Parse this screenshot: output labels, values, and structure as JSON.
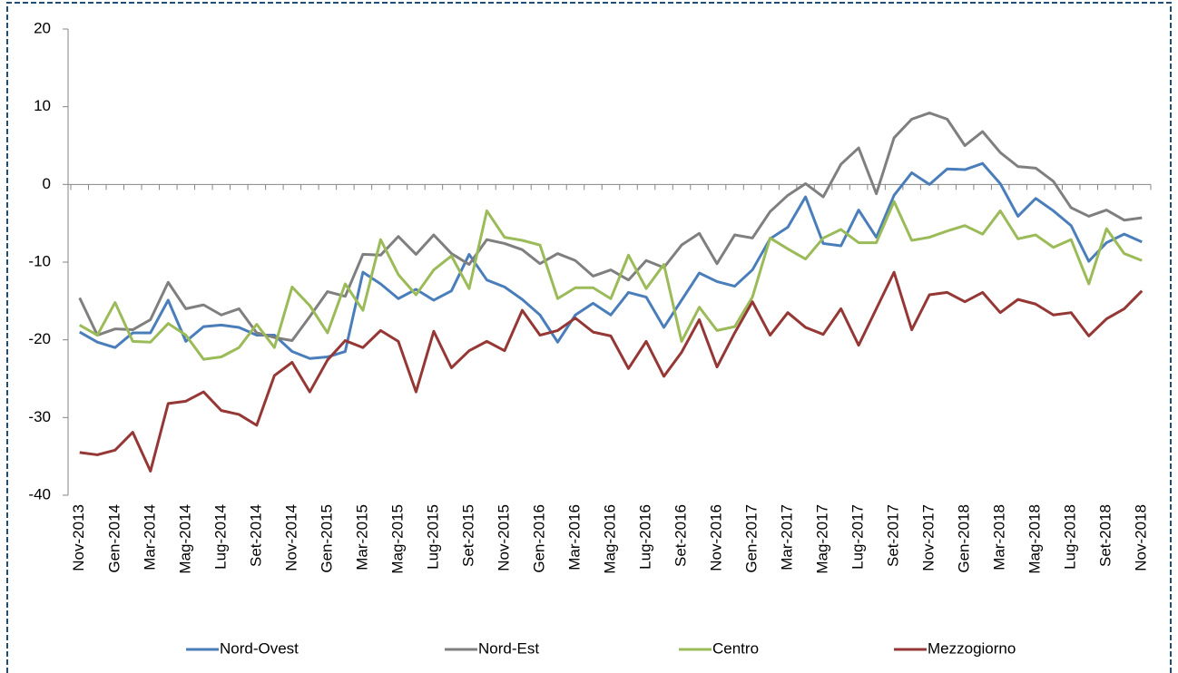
{
  "chart_data": {
    "type": "line",
    "categories": [
      "Nov-2013",
      null,
      "Gen-2014",
      null,
      "Mar-2014",
      null,
      "Mag-2014",
      null,
      "Lug-2014",
      null,
      "Set-2014",
      null,
      "Nov-2014",
      null,
      "Gen-2015",
      null,
      "Mar-2015",
      null,
      "Mag-2015",
      null,
      "Lug-2015",
      null,
      "Set-2015",
      null,
      "Nov-2015",
      null,
      "Gen-2016",
      null,
      "Mar-2016",
      null,
      "Mag-2016",
      null,
      "Lug-2016",
      null,
      "Set-2016",
      null,
      "Nov-2016",
      null,
      "Gen-2017",
      null,
      "Mar-2017",
      null,
      "Mag-2017",
      null,
      "Lug-2017",
      null,
      "Set-2017",
      null,
      "Nov-2017",
      null,
      "Gen-2018",
      null,
      "Mar-2018",
      null,
      "Mag-2018",
      null,
      "Lug-2018",
      null,
      "Set-2018",
      null,
      "Nov-2018"
    ],
    "series": [
      {
        "name": "Nord-Ovest",
        "color": "#4a7ebb",
        "values": [
          -19,
          -20.3,
          -21,
          -19.1,
          -19.1,
          -14.9,
          -20.2,
          -18.3,
          -18.1,
          -18.4,
          -19.4,
          -19.4,
          -21.5,
          -22.4,
          -22.2,
          -21.5,
          -11.3,
          -12.8,
          -14.7,
          -13.5,
          -14.9,
          -13.7,
          -9,
          -12.3,
          -13.2,
          -14.8,
          -16.8,
          -20.3,
          -16.8,
          -15.3,
          -16.8,
          -13.9,
          -14.5,
          -18.4,
          -14.9,
          -11.4,
          -12.5,
          -13.1,
          -11,
          -7,
          -5.5,
          -1.6,
          -7.6,
          -7.9,
          -3.3,
          -6.8,
          -1.4,
          1.5,
          0,
          2,
          1.9,
          2.7,
          0.1,
          -4.1,
          -1.8,
          -3.4,
          -5.3,
          -9.9,
          -7.5,
          -6.4,
          -7.4
        ]
      },
      {
        "name": "Nord-Est",
        "color": "#7f7f7f",
        "values": [
          -14.6,
          -19.4,
          -18.6,
          -18.7,
          -17.4,
          -12.6,
          -16,
          -15.5,
          -16.8,
          -16,
          -19.1,
          -19.7,
          -20.1,
          -17,
          -13.8,
          -14.4,
          -9,
          -9.1,
          -6.7,
          -9,
          -6.5,
          -8.9,
          -10.3,
          -7.1,
          -7.6,
          -8.4,
          -10.2,
          -8.9,
          -9.8,
          -11.8,
          -11,
          -12.3,
          -9.8,
          -10.7,
          -7.8,
          -6.3,
          -10.2,
          -6.5,
          -6.9,
          -3.5,
          -1.4,
          0.1,
          -1.6,
          2.6,
          4.7,
          -1.2,
          6,
          8.4,
          9.2,
          8.4,
          5,
          6.8,
          4.1,
          2.3,
          2.1,
          0.4,
          -3,
          -4.1,
          -3.3,
          -4.6,
          -4.3
        ]
      },
      {
        "name": "Centro",
        "color": "#9bbb59",
        "values": [
          -18.1,
          -19.4,
          -15.2,
          -20.2,
          -20.3,
          -17.9,
          -19.4,
          -22.5,
          -22.2,
          -21,
          -18,
          -21,
          -13.2,
          -15.6,
          -19.1,
          -12.8,
          -16.2,
          -7.1,
          -11.6,
          -14.2,
          -11,
          -9.2,
          -13.4,
          -3.4,
          -6.8,
          -7.2,
          -7.8,
          -14.7,
          -13.3,
          -13.3,
          -14.7,
          -9.1,
          -13.4,
          -10.3,
          -20.2,
          -15.8,
          -18.8,
          -18.3,
          -14.5,
          -6.9,
          -8.3,
          -9.6,
          -6.9,
          -5.8,
          -7.5,
          -7.5,
          -2.2,
          -7.2,
          -6.8,
          -6,
          -5.3,
          -6.4,
          -3.4,
          -7,
          -6.5,
          -8.1,
          -7.1,
          -12.8,
          -5.7,
          -8.9,
          -9.8
        ]
      },
      {
        "name": "Mezzogiorno",
        "color": "#953735",
        "values": [
          -34.5,
          -34.8,
          -34.2,
          -31.9,
          -36.9,
          -28.2,
          -27.9,
          -26.7,
          -29.1,
          -29.6,
          -31,
          -24.6,
          -22.9,
          -26.7,
          -22.6,
          -20.1,
          -21,
          -18.8,
          -20.2,
          -26.7,
          -18.9,
          -23.6,
          -21.4,
          -20.2,
          -21.4,
          -16.2,
          -19.4,
          -18.8,
          -17.2,
          -19,
          -19.5,
          -23.7,
          -20.2,
          -24.7,
          -21.6,
          -17.4,
          -23.5,
          -19.1,
          -15.1,
          -19.4,
          -16.5,
          -18.4,
          -19.3,
          -16,
          -20.7,
          -16,
          -11.3,
          -18.7,
          -14.2,
          -13.9,
          -15.1,
          -13.9,
          -16.5,
          -14.8,
          -15.4,
          -16.8,
          -16.5,
          -19.5,
          -17.3,
          -16,
          -13.7
        ]
      }
    ],
    "ylim": [
      -40,
      20
    ],
    "yticks": [
      20,
      10,
      0,
      -10,
      -20,
      -30,
      -40
    ],
    "grid": false,
    "legend": "bottom"
  }
}
